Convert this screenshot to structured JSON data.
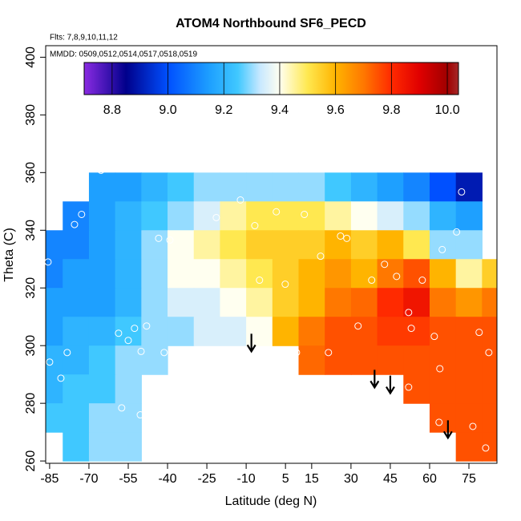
{
  "chart_data": {
    "type": "heatmap",
    "title": "ATOM4 Northbound SF6_PECD",
    "notes": [
      "Flts: 7,8,9,10,11,12",
      "MMDD: 0509,0512,0514,0517,0518,0519"
    ],
    "xlabel": "Latitude (deg N)",
    "ylabel": "Theta (C)",
    "xlim": [
      -86.5,
      85.7
    ],
    "ylim": [
      259.2,
      404
    ],
    "xticks": [
      -85,
      -70,
      -55,
      -40,
      -25,
      -10,
      5,
      15,
      30,
      45,
      60,
      75
    ],
    "yticks": [
      260,
      280,
      300,
      320,
      340,
      360,
      380,
      400
    ],
    "clim": [
      8.7,
      10.04
    ],
    "cticks": [
      {
        "value": 8.8,
        "label": "8.8"
      },
      {
        "value": 9.0,
        "label": "9.0"
      },
      {
        "value": 9.2,
        "label": "9.2"
      },
      {
        "value": 9.4,
        "label": "9.4"
      },
      {
        "value": 9.6,
        "label": "9.6"
      },
      {
        "value": 9.8,
        "label": "9.8"
      },
      {
        "value": 10.0,
        "label": "10.0"
      }
    ],
    "color_stops": [
      [
        8.7,
        "#8a2be2"
      ],
      [
        8.85,
        "#00008b"
      ],
      [
        9.0,
        "#0050ff"
      ],
      [
        9.15,
        "#1ea0ff"
      ],
      [
        9.25,
        "#40c8ff"
      ],
      [
        9.33,
        "#c8e8ff"
      ],
      [
        9.4,
        "#fffff0"
      ],
      [
        9.5,
        "#ffe850"
      ],
      [
        9.6,
        "#ffb400"
      ],
      [
        9.7,
        "#ff7800"
      ],
      [
        9.8,
        "#ff2a00"
      ],
      [
        9.9,
        "#e00000"
      ],
      [
        10.0,
        "#a00000"
      ],
      [
        10.04,
        "#a52a2a"
      ]
    ],
    "x": [
      -85,
      -75,
      -65,
      -55,
      -45,
      -35,
      -25,
      -15,
      -5,
      5,
      15,
      25,
      35,
      45,
      55,
      65,
      75,
      85
    ],
    "y": [
      355,
      345,
      335,
      325,
      315,
      305,
      295,
      285,
      275,
      265
    ],
    "values": [
      [
        null,
        null,
        9.15,
        9.15,
        9.2,
        9.25,
        9.3,
        9.3,
        9.3,
        9.3,
        9.3,
        9.25,
        9.2,
        9.15,
        9.1,
        9.0,
        8.9,
        null
      ],
      [
        null,
        9.1,
        9.15,
        9.2,
        9.25,
        9.3,
        9.35,
        9.45,
        9.5,
        9.5,
        9.5,
        9.45,
        9.4,
        9.35,
        9.3,
        9.2,
        9.15,
        null
      ],
      [
        9.1,
        9.1,
        9.15,
        9.2,
        9.3,
        9.4,
        9.45,
        9.5,
        9.55,
        9.55,
        9.55,
        9.6,
        9.55,
        9.6,
        9.5,
        9.3,
        9.3,
        null
      ],
      [
        9.1,
        9.15,
        9.15,
        9.2,
        9.3,
        9.4,
        9.4,
        9.45,
        9.5,
        9.55,
        9.6,
        9.65,
        9.6,
        9.7,
        9.75,
        9.6,
        9.45,
        9.55
      ],
      [
        9.15,
        9.15,
        9.15,
        9.2,
        9.3,
        9.35,
        9.35,
        9.4,
        9.45,
        9.55,
        9.6,
        9.7,
        9.72,
        9.8,
        9.85,
        9.7,
        9.65,
        9.7
      ],
      [
        9.15,
        9.2,
        9.2,
        9.25,
        9.3,
        9.3,
        9.35,
        9.35,
        9.4,
        9.6,
        9.7,
        9.75,
        9.75,
        9.78,
        9.78,
        9.75,
        9.75,
        9.75
      ],
      [
        9.2,
        9.2,
        9.25,
        9.3,
        9.3,
        null,
        null,
        null,
        null,
        null,
        9.72,
        9.75,
        9.75,
        9.75,
        9.75,
        9.75,
        9.75,
        9.75
      ],
      [
        9.2,
        9.25,
        9.25,
        9.3,
        null,
        null,
        null,
        null,
        null,
        null,
        null,
        null,
        null,
        null,
        9.75,
        9.75,
        9.75,
        9.75
      ],
      [
        9.25,
        9.25,
        9.3,
        9.3,
        null,
        null,
        null,
        null,
        null,
        null,
        null,
        null,
        null,
        null,
        null,
        9.75,
        9.75,
        9.75
      ],
      [
        null,
        9.25,
        9.3,
        9.3,
        null,
        null,
        null,
        null,
        null,
        null,
        null,
        null,
        null,
        null,
        null,
        null,
        9.75,
        9.75
      ]
    ],
    "points": {
      "x": [
        -85,
        -80.7,
        -78.3,
        -85.6,
        -75.5,
        -72.8,
        -65.4,
        -58.7,
        -55,
        -52.6,
        -50.1,
        -48,
        -47.4,
        -50.4,
        -57.5,
        -41.3,
        -43.4,
        -39.1,
        -36.7,
        -28.4,
        -21.4,
        -12.2,
        -6.7,
        -4.9,
        1.5,
        4.9,
        9.2,
        12.2,
        18.4,
        21.4,
        26,
        28.4,
        32.7,
        37.9,
        42.8,
        47.4,
        52,
        53,
        57.2,
        61.8,
        63.9,
        64.8,
        70.3,
        72.2,
        76.5,
        78.9,
        82.6,
        81.4,
        63.6,
        52
      ],
      "y": [
        294.3,
        288.7,
        297.6,
        329,
        342,
        345.5,
        360.8,
        304.3,
        301.8,
        306,
        298,
        306.8,
        280,
        276,
        278.4,
        297.6,
        337.2,
        336.6,
        292.3,
        296.2,
        344.4,
        350.5,
        341.6,
        322.7,
        346.4,
        321.3,
        297.6,
        345.5,
        331,
        297.6,
        338,
        337.2,
        306.8,
        322.7,
        328.2,
        324,
        311.5,
        306,
        322.7,
        303.2,
        292,
        333.3,
        339.4,
        353.3,
        272,
        304.6,
        297.6,
        264.5,
        273.4,
        285.6
      ]
    },
    "arrows": {
      "x": [
        -8,
        39,
        45,
        67
      ],
      "y": [
        298,
        285.5,
        283.5,
        268
      ]
    }
  }
}
